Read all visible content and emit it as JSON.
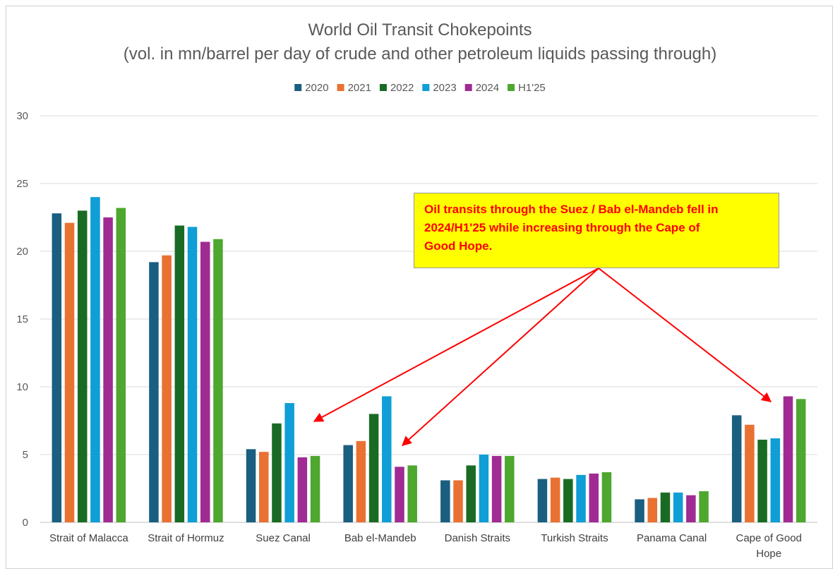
{
  "chart_data": {
    "type": "bar",
    "title": "World Oil Transit Chokepoints",
    "subtitle": "(vol. in mn/barrel per day of crude and other petroleum liquids passing through)",
    "categories": [
      [
        "Strait of Malacca"
      ],
      [
        "Strait of Hormuz"
      ],
      [
        "Suez Canal"
      ],
      [
        "Bab el-Mandeb"
      ],
      [
        "Danish Straits"
      ],
      [
        "Turkish Straits"
      ],
      [
        "Panama Canal"
      ],
      [
        "Cape of Good",
        "Hope"
      ]
    ],
    "series": [
      {
        "name": "2020",
        "color": "#1a5e80",
        "values": [
          22.8,
          19.2,
          5.4,
          5.7,
          3.1,
          3.2,
          1.7,
          7.9
        ]
      },
      {
        "name": "2021",
        "color": "#e97132",
        "values": [
          22.1,
          19.7,
          5.2,
          6.0,
          3.1,
          3.3,
          1.8,
          7.2
        ]
      },
      {
        "name": "2022",
        "color": "#196b24",
        "values": [
          23.0,
          21.9,
          7.3,
          8.0,
          4.2,
          3.2,
          2.2,
          6.1
        ]
      },
      {
        "name": "2023",
        "color": "#0f9ed5",
        "values": [
          24.0,
          21.8,
          8.8,
          9.3,
          5.0,
          3.5,
          2.2,
          6.2
        ]
      },
      {
        "name": "2024",
        "color": "#a02b93",
        "values": [
          22.5,
          20.7,
          4.8,
          4.1,
          4.9,
          3.6,
          2.0,
          9.3
        ]
      },
      {
        "name": "H1'25",
        "color": "#4ea72e",
        "values": [
          23.2,
          20.9,
          4.9,
          4.2,
          4.9,
          3.7,
          2.3,
          9.1
        ]
      }
    ],
    "ylim": [
      0,
      30
    ],
    "yticks": [
      0,
      5,
      10,
      15,
      20,
      25,
      30
    ],
    "grid": true,
    "legend_position": "top",
    "annotation": {
      "lines": [
        "Oil transits through the Suez / Bab el-Mandeb fell in",
        "2024/H1'25 while increasing through the Cape of",
        "Good Hope."
      ],
      "background": "#ffff00",
      "text_color": "#ff0000",
      "arrow_color": "#ff0000"
    }
  }
}
